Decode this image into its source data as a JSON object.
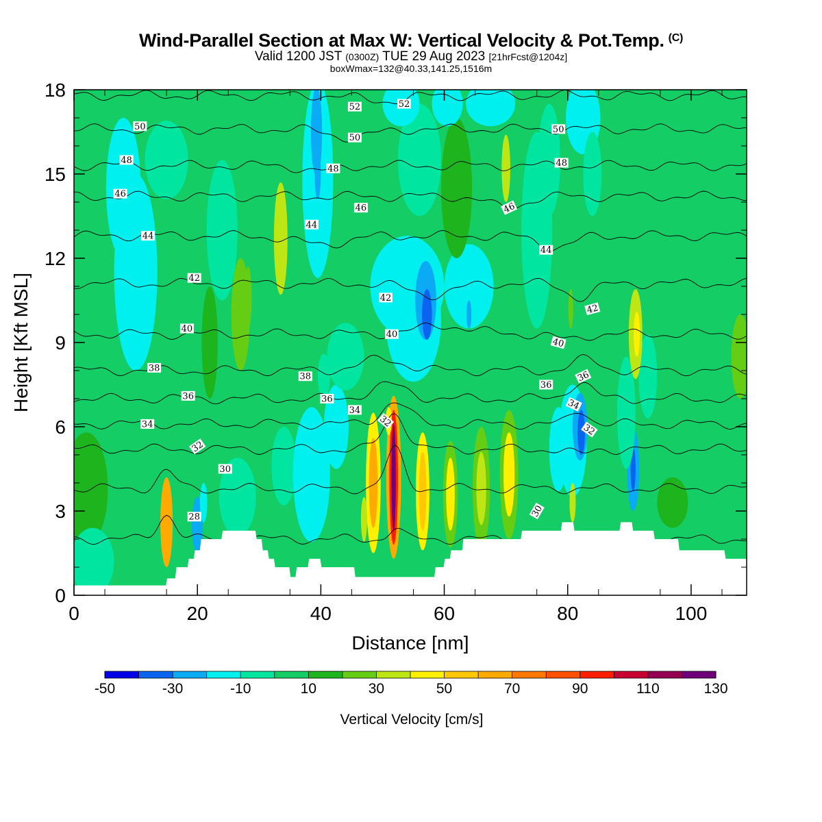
{
  "title": {
    "main": "Wind-Parallel Section at Max W: Vertical Velocity & Pot.Temp.",
    "copyright": "(C)",
    "valid_prefix": "Valid 1200 JST",
    "valid_utc": "(0300Z)",
    "valid_date": "TUE 29 Aug 2023",
    "forecast": "[21hrFcst@1204z]",
    "box_info": "boxWmax=132@40.33,141.25,1516m"
  },
  "chart_data": {
    "type": "heatmap",
    "title": "Wind-Parallel Section at Max W: Vertical Velocity & Pot.Temp.",
    "xlabel": "Distance [nm]",
    "ylabel": "Height [Kft MSL]",
    "xlim": [
      0,
      109
    ],
    "ylim": [
      0,
      18
    ],
    "x_ticks": [
      0,
      20,
      40,
      60,
      80,
      100
    ],
    "y_ticks": [
      0,
      3,
      6,
      9,
      12,
      15,
      18
    ],
    "colorbar": {
      "label": "Vertical Velocity [cm/s]",
      "ticks": [
        -50,
        -30,
        -10,
        10,
        30,
        50,
        70,
        90,
        110,
        130
      ],
      "bins": [
        -50,
        -40,
        -30,
        -20,
        -10,
        0,
        10,
        20,
        30,
        40,
        50,
        60,
        70,
        80,
        90,
        100,
        110,
        120,
        130
      ],
      "colors": [
        "#0000e6",
        "#0a64f0",
        "#0aaaf5",
        "#00f0f0",
        "#00e6a0",
        "#14cd64",
        "#1eb41e",
        "#64cd14",
        "#bee614",
        "#fff000",
        "#ffc800",
        "#ffaa00",
        "#ff7800",
        "#ff5000",
        "#ff1e00",
        "#c80032",
        "#960050",
        "#6e0078"
      ]
    },
    "background_value": 5,
    "terrain_kft": [
      [
        0,
        0.35
      ],
      [
        14.9,
        0.35
      ],
      [
        15.1,
        0.6
      ],
      [
        16.4,
        0.6
      ],
      [
        16.6,
        1.0
      ],
      [
        18.4,
        1.0
      ],
      [
        18.6,
        1.3
      ],
      [
        19.4,
        1.3
      ],
      [
        19.6,
        1.6
      ],
      [
        20.4,
        1.6
      ],
      [
        20.6,
        2.0
      ],
      [
        23.9,
        2.0
      ],
      [
        24.1,
        2.3
      ],
      [
        29.4,
        2.3
      ],
      [
        29.6,
        2.0
      ],
      [
        30.4,
        2.0
      ],
      [
        30.6,
        1.6
      ],
      [
        31.4,
        1.6
      ],
      [
        31.6,
        1.3
      ],
      [
        32.4,
        1.3
      ],
      [
        32.6,
        1.0
      ],
      [
        34.9,
        1.0
      ],
      [
        35.1,
        0.65
      ],
      [
        35.9,
        0.65
      ],
      [
        36.1,
        1.0
      ],
      [
        37.9,
        1.0
      ],
      [
        38.1,
        1.3
      ],
      [
        39.9,
        1.3
      ],
      [
        40.1,
        1.0
      ],
      [
        45.4,
        1.0
      ],
      [
        45.6,
        0.65
      ],
      [
        58.4,
        0.65
      ],
      [
        58.6,
        1.0
      ],
      [
        59.9,
        1.0
      ],
      [
        60.1,
        1.3
      ],
      [
        60.9,
        1.3
      ],
      [
        61.1,
        1.6
      ],
      [
        62.9,
        1.6
      ],
      [
        63.1,
        2.0
      ],
      [
        72.4,
        2.0
      ],
      [
        72.6,
        2.3
      ],
      [
        78.9,
        2.3
      ],
      [
        79.1,
        2.6
      ],
      [
        80.9,
        2.6
      ],
      [
        81.1,
        2.3
      ],
      [
        88.4,
        2.3
      ],
      [
        88.6,
        2.6
      ],
      [
        90.4,
        2.6
      ],
      [
        90.6,
        2.3
      ],
      [
        93.9,
        2.3
      ],
      [
        94.1,
        2.0
      ],
      [
        97.9,
        2.0
      ],
      [
        98.1,
        1.6
      ],
      [
        105.4,
        1.6
      ],
      [
        105.6,
        1.3
      ],
      [
        109,
        1.3
      ]
    ],
    "cells": [
      {
        "x": 15,
        "y": 2.6,
        "rx": 1.0,
        "ry": 1.6,
        "v": 62
      },
      {
        "x": 20,
        "y": 2.5,
        "rx": 0.9,
        "ry": 1.0,
        "v": -30
      },
      {
        "x": 21,
        "y": 3.3,
        "rx": 0.6,
        "ry": 0.7,
        "v": -15
      },
      {
        "x": 26.5,
        "y": 3.5,
        "rx": 3.0,
        "ry": 1.4,
        "v": -10
      },
      {
        "x": 10,
        "y": 11.5,
        "rx": 3.5,
        "ry": 3.5,
        "v": -12
      },
      {
        "x": 8,
        "y": 14.5,
        "rx": 2.8,
        "ry": 2.5,
        "v": -12
      },
      {
        "x": 11,
        "y": 13,
        "rx": 1.0,
        "ry": 1.5,
        "v": -18
      },
      {
        "x": 15,
        "y": 15.5,
        "rx": 3.5,
        "ry": 1.4,
        "v": -8
      },
      {
        "x": 24,
        "y": 13,
        "rx": 2.5,
        "ry": 2.5,
        "v": -5
      },
      {
        "x": 33.5,
        "y": 12.7,
        "rx": 1.1,
        "ry": 2.0,
        "v": 32
      },
      {
        "x": 27,
        "y": 10,
        "rx": 1.5,
        "ry": 2.0,
        "v": 20
      },
      {
        "x": 28.2,
        "y": 10.6,
        "rx": 0.6,
        "ry": 1.1,
        "v": 28
      },
      {
        "x": 22,
        "y": 9,
        "rx": 1.3,
        "ry": 2.0,
        "v": 15
      },
      {
        "x": 39.5,
        "y": 14.8,
        "rx": 2.5,
        "ry": 3.5,
        "v": -12
      },
      {
        "x": 39.3,
        "y": 16.5,
        "rx": 0.9,
        "ry": 1.6,
        "v": -25
      },
      {
        "x": 39.5,
        "y": 15.0,
        "rx": 0.5,
        "ry": 0.9,
        "v": -22
      },
      {
        "x": 34,
        "y": 4.6,
        "rx": 2.0,
        "ry": 1.4,
        "v": -8
      },
      {
        "x": 38.5,
        "y": 4.3,
        "rx": 3.0,
        "ry": 2.4,
        "v": -12
      },
      {
        "x": 42.5,
        "y": 6.0,
        "rx": 2.0,
        "ry": 1.5,
        "v": -12
      },
      {
        "x": 44,
        "y": 8.5,
        "rx": 3.0,
        "ry": 1.2,
        "v": -10
      },
      {
        "x": 40.5,
        "y": 7.8,
        "rx": 1.0,
        "ry": 0.8,
        "v": -10
      },
      {
        "x": 48.5,
        "y": 4.0,
        "rx": 1.2,
        "ry": 2.5,
        "v": 45
      },
      {
        "x": 48.5,
        "y": 4.0,
        "rx": 0.7,
        "ry": 1.6,
        "v": 60
      },
      {
        "x": 47,
        "y": 2.7,
        "rx": 0.5,
        "ry": 0.8,
        "v": 30
      },
      {
        "x": 51.8,
        "y": 4.2,
        "rx": 1.2,
        "ry": 2.9,
        "v": 60
      },
      {
        "x": 51.8,
        "y": 4.2,
        "rx": 0.7,
        "ry": 2.4,
        "v": 95
      },
      {
        "x": 51.8,
        "y": 4.2,
        "rx": 0.35,
        "ry": 1.9,
        "v": 125
      },
      {
        "x": 51.0,
        "y": 6.2,
        "rx": 0.5,
        "ry": 0.5,
        "v": 40
      },
      {
        "x": 56.5,
        "y": 3.7,
        "rx": 1.1,
        "ry": 2.1,
        "v": 40
      },
      {
        "x": 56.5,
        "y": 3.7,
        "rx": 0.6,
        "ry": 1.4,
        "v": 55
      },
      {
        "x": 61,
        "y": 3.6,
        "rx": 1.2,
        "ry": 1.9,
        "v": 25
      },
      {
        "x": 61,
        "y": 3.6,
        "rx": 0.7,
        "ry": 1.3,
        "v": 45
      },
      {
        "x": 66,
        "y": 3.8,
        "rx": 1.4,
        "ry": 2.2,
        "v": 20
      },
      {
        "x": 66,
        "y": 3.8,
        "rx": 0.8,
        "ry": 1.3,
        "v": 35
      },
      {
        "x": 70.5,
        "y": 4.3,
        "rx": 1.5,
        "ry": 2.3,
        "v": 25
      },
      {
        "x": 70.5,
        "y": 4.3,
        "rx": 0.9,
        "ry": 1.5,
        "v": 42
      },
      {
        "x": 54,
        "y": 11.0,
        "rx": 6.0,
        "ry": 1.8,
        "v": -12
      },
      {
        "x": 55,
        "y": 9.8,
        "rx": 4.5,
        "ry": 2.2,
        "v": -12
      },
      {
        "x": 57,
        "y": 10.5,
        "rx": 1.7,
        "ry": 1.4,
        "v": -28
      },
      {
        "x": 57.2,
        "y": 10.0,
        "rx": 0.8,
        "ry": 0.9,
        "v": -35
      },
      {
        "x": 64,
        "y": 11.0,
        "rx": 4.0,
        "ry": 1.5,
        "v": -12
      },
      {
        "x": 64,
        "y": 10.0,
        "rx": 0.4,
        "ry": 0.5,
        "v": -25
      },
      {
        "x": 62,
        "y": 14.5,
        "rx": 2.5,
        "ry": 2.5,
        "v": 12
      },
      {
        "x": 56,
        "y": 15.5,
        "rx": 3.5,
        "ry": 2.0,
        "v": -5
      },
      {
        "x": 53,
        "y": 17.5,
        "rx": 3.0,
        "ry": 0.8,
        "v": -12
      },
      {
        "x": 60.5,
        "y": 17.5,
        "rx": 2.5,
        "ry": 0.8,
        "v": -12
      },
      {
        "x": 67.5,
        "y": 17.5,
        "rx": 4.0,
        "ry": 0.8,
        "v": -12
      },
      {
        "x": 70,
        "y": 15.2,
        "rx": 0.7,
        "ry": 1.2,
        "v": 30
      },
      {
        "x": 75,
        "y": 13.0,
        "rx": 2.5,
        "ry": 3.5,
        "v": -8
      },
      {
        "x": 77,
        "y": 15.5,
        "rx": 1.8,
        "ry": 2.0,
        "v": -10
      },
      {
        "x": 82.5,
        "y": 17.0,
        "rx": 2.8,
        "ry": 1.3,
        "v": -12
      },
      {
        "x": 84,
        "y": 15.0,
        "rx": 1.5,
        "ry": 1.5,
        "v": -8
      },
      {
        "x": 80.5,
        "y": 10.2,
        "rx": 0.4,
        "ry": 0.7,
        "v": 25
      },
      {
        "x": 80.8,
        "y": 5.5,
        "rx": 2.3,
        "ry": 2.0,
        "v": -12
      },
      {
        "x": 82,
        "y": 6.0,
        "rx": 1.2,
        "ry": 1.2,
        "v": -28
      },
      {
        "x": 82.2,
        "y": 5.8,
        "rx": 0.6,
        "ry": 0.8,
        "v": -38
      },
      {
        "x": 78.5,
        "y": 5.2,
        "rx": 1.5,
        "ry": 1.5,
        "v": -12
      },
      {
        "x": 80.8,
        "y": 3.3,
        "rx": 0.5,
        "ry": 0.7,
        "v": 30
      },
      {
        "x": 90.6,
        "y": 4.5,
        "rx": 1.0,
        "ry": 1.5,
        "v": -25
      },
      {
        "x": 90.6,
        "y": 4.5,
        "rx": 0.4,
        "ry": 0.8,
        "v": -38
      },
      {
        "x": 89.5,
        "y": 6.5,
        "rx": 1.5,
        "ry": 2.0,
        "v": -10
      },
      {
        "x": 93,
        "y": 7.8,
        "rx": 1.5,
        "ry": 1.5,
        "v": -8
      },
      {
        "x": 91,
        "y": 9.3,
        "rx": 1.1,
        "ry": 1.6,
        "v": 32
      },
      {
        "x": 91.2,
        "y": 9.3,
        "rx": 0.5,
        "ry": 0.8,
        "v": 42
      },
      {
        "x": 97,
        "y": 3.3,
        "rx": 2.5,
        "ry": 0.9,
        "v": 15
      },
      {
        "x": 108,
        "y": 8.5,
        "rx": 1.5,
        "ry": 1.5,
        "v": 20
      },
      {
        "x": 2,
        "y": 3.8,
        "rx": 3.5,
        "ry": 2.0,
        "v": 12
      },
      {
        "x": 3,
        "y": 1.2,
        "rx": 3.5,
        "ry": 1.2,
        "v": -8
      }
    ],
    "theta_contours": [
      {
        "value": 28,
        "y_kft": 2.0,
        "bumps": [
          [
            15,
            0.9,
            2
          ],
          [
            52,
            0.4,
            1.5
          ]
        ]
      },
      {
        "value": 30,
        "y_kft": 3.8,
        "bumps": [
          [
            52,
            1.4,
            2
          ],
          [
            15,
            0.6,
            2
          ]
        ]
      },
      {
        "value": 32,
        "y_kft": 5.2,
        "bumps": [
          [
            52,
            1.3,
            2.5
          ],
          [
            82,
            -0.2,
            2
          ]
        ]
      },
      {
        "value": 34,
        "y_kft": 6.1,
        "bumps": [
          [
            52,
            0.8,
            3
          ],
          [
            82,
            0.5,
            2
          ]
        ]
      },
      {
        "value": 36,
        "y_kft": 7.0,
        "bumps": [
          [
            51,
            0.5,
            4
          ],
          [
            82,
            0.6,
            2.5
          ]
        ]
      },
      {
        "value": 38,
        "y_kft": 8.0,
        "bumps": [
          [
            50,
            0.4,
            5
          ],
          [
            83,
            0.4,
            3
          ]
        ]
      },
      {
        "value": 40,
        "y_kft": 9.3,
        "bumps": [
          [
            60,
            0.3,
            6
          ],
          [
            80,
            -0.2,
            3
          ]
        ]
      },
      {
        "value": 42,
        "y_kft": 11.1,
        "bumps": [
          [
            58,
            -0.4,
            5
          ],
          [
            82,
            -0.5,
            3
          ]
        ]
      },
      {
        "value": 44,
        "y_kft": 12.8,
        "bumps": [
          [
            40,
            -0.3,
            6
          ],
          [
            78,
            -0.4,
            4
          ]
        ]
      },
      {
        "value": 46,
        "y_kft": 14.2,
        "bumps": [
          [
            70,
            -0.4,
            4
          ]
        ]
      },
      {
        "value": 48,
        "y_kft": 15.3,
        "bumps": [
          [
            40,
            -0.2,
            4
          ]
        ]
      },
      {
        "value": 50,
        "y_kft": 16.6,
        "bumps": [
          [
            45,
            -0.3,
            5
          ]
        ]
      },
      {
        "value": 52,
        "y_kft": 17.8,
        "bumps": [
          [
            50,
            -0.2,
            5
          ]
        ]
      }
    ],
    "theta_labels": [
      {
        "text": "28",
        "x": 19.5,
        "y": 2.8,
        "rot": 0
      },
      {
        "text": "30",
        "x": 24.5,
        "y": 4.5,
        "rot": 0
      },
      {
        "text": "30",
        "x": 75.0,
        "y": 3.0,
        "rot": -60
      },
      {
        "text": "32",
        "x": 20.0,
        "y": 5.3,
        "rot": -35
      },
      {
        "text": "32",
        "x": 50.5,
        "y": 6.2,
        "rot": 40
      },
      {
        "text": "32",
        "x": 83.5,
        "y": 5.9,
        "rot": 35
      },
      {
        "text": "34",
        "x": 11.9,
        "y": 6.1,
        "rot": 0
      },
      {
        "text": "34",
        "x": 45.5,
        "y": 6.6,
        "rot": 0
      },
      {
        "text": "34",
        "x": 81.0,
        "y": 6.8,
        "rot": 25
      },
      {
        "text": "36",
        "x": 18.5,
        "y": 7.1,
        "rot": 0
      },
      {
        "text": "36",
        "x": 41.0,
        "y": 7.0,
        "rot": 0
      },
      {
        "text": "36",
        "x": 76.5,
        "y": 7.5,
        "rot": 0
      },
      {
        "text": "36",
        "x": 82.5,
        "y": 7.8,
        "rot": -25
      },
      {
        "text": "38",
        "x": 13.0,
        "y": 8.1,
        "rot": 0
      },
      {
        "text": "38",
        "x": 37.5,
        "y": 7.8,
        "rot": 0
      },
      {
        "text": "40",
        "x": 18.3,
        "y": 9.5,
        "rot": 0
      },
      {
        "text": "40",
        "x": 51.5,
        "y": 9.3,
        "rot": 0
      },
      {
        "text": "40",
        "x": 78.5,
        "y": 9.0,
        "rot": 15
      },
      {
        "text": "42",
        "x": 19.5,
        "y": 11.3,
        "rot": 0
      },
      {
        "text": "42",
        "x": 50.5,
        "y": 10.6,
        "rot": 0
      },
      {
        "text": "42",
        "x": 84.0,
        "y": 10.2,
        "rot": -15
      },
      {
        "text": "44",
        "x": 12.0,
        "y": 12.8,
        "rot": 0
      },
      {
        "text": "44",
        "x": 38.5,
        "y": 13.2,
        "rot": 0
      },
      {
        "text": "44",
        "x": 76.5,
        "y": 12.3,
        "rot": 0
      },
      {
        "text": "46",
        "x": 7.5,
        "y": 14.3,
        "rot": 0
      },
      {
        "text": "46",
        "x": 46.5,
        "y": 13.8,
        "rot": 0
      },
      {
        "text": "46",
        "x": 70.5,
        "y": 13.8,
        "rot": -25
      },
      {
        "text": "48",
        "x": 8.5,
        "y": 15.5,
        "rot": 0
      },
      {
        "text": "48",
        "x": 42.0,
        "y": 15.2,
        "rot": 0
      },
      {
        "text": "48",
        "x": 79.0,
        "y": 15.4,
        "rot": 0
      },
      {
        "text": "50",
        "x": 10.7,
        "y": 16.7,
        "rot": 0
      },
      {
        "text": "50",
        "x": 45.5,
        "y": 16.3,
        "rot": 0
      },
      {
        "text": "50",
        "x": 78.5,
        "y": 16.6,
        "rot": 0
      },
      {
        "text": "52",
        "x": 45.5,
        "y": 17.4,
        "rot": 0
      },
      {
        "text": "52",
        "x": 53.5,
        "y": 17.5,
        "rot": 0
      }
    ]
  }
}
